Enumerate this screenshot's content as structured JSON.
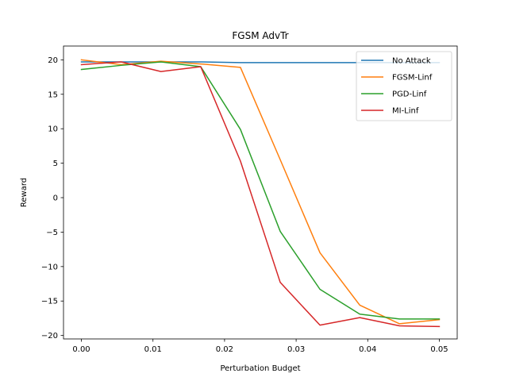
{
  "chart_data": {
    "type": "line",
    "title": "FGSM AdvTr",
    "xlabel": "Perturbation Budget",
    "ylabel": "Reward",
    "xlim": [
      -0.0025,
      0.0525
    ],
    "ylim": [
      -20.5,
      22
    ],
    "xticks": [
      0.0,
      0.01,
      0.02,
      0.03,
      0.04,
      0.05
    ],
    "xtick_labels": [
      "0.00",
      "0.01",
      "0.02",
      "0.03",
      "0.04",
      "0.05"
    ],
    "yticks": [
      20,
      15,
      10,
      5,
      0,
      -5,
      -10,
      -15,
      -20
    ],
    "ytick_labels": [
      "20",
      "15",
      "10",
      "5",
      "0",
      "−5",
      "−10",
      "−15",
      "−20"
    ],
    "grid": false,
    "legend_position": "top-right",
    "x": [
      0.0,
      0.00556,
      0.01111,
      0.01667,
      0.02222,
      0.02778,
      0.03333,
      0.03889,
      0.04444,
      0.05
    ],
    "series": [
      {
        "name": "No Attack",
        "color": "#1f77b4",
        "values": [
          19.7,
          19.7,
          19.7,
          19.7,
          19.6,
          19.6,
          19.6,
          19.6,
          19.6,
          19.6
        ]
      },
      {
        "name": "FGSM-Linf",
        "color": "#ff7f0e",
        "values": [
          20.0,
          19.3,
          19.8,
          19.4,
          18.9,
          5.5,
          -8.0,
          -15.6,
          -18.3,
          -17.7
        ]
      },
      {
        "name": "PGD-Linf",
        "color": "#2ca02c",
        "values": [
          18.6,
          19.2,
          19.7,
          19.0,
          9.9,
          -4.9,
          -13.3,
          -16.9,
          -17.6,
          -17.6
        ]
      },
      {
        "name": "MI-Linf",
        "color": "#d62728",
        "values": [
          19.3,
          19.7,
          18.3,
          19.0,
          5.3,
          -12.3,
          -18.5,
          -17.4,
          -18.6,
          -18.7
        ]
      }
    ]
  }
}
